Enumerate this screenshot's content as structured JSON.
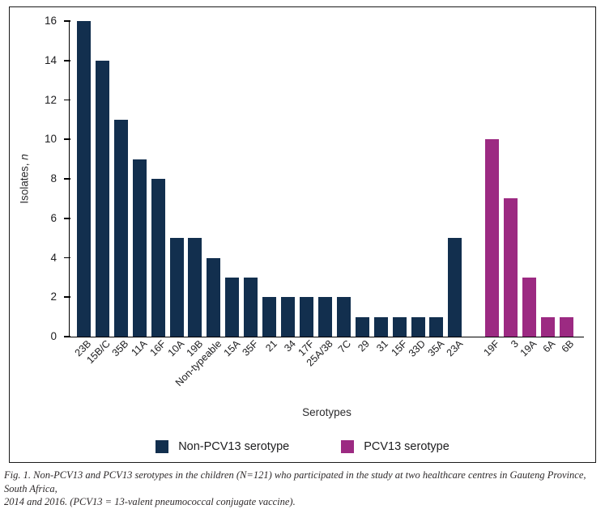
{
  "figure": {
    "caption": {
      "line1": "Fig. 1. Non-PCV13 and PCV13 serotypes in the children (N=121) who participated in the study at two healthcare centres in Gauteng Province, South Africa,",
      "line2": "2014 and 2016. (PCV13 = 13-valent pneumococcal conjugate vaccine)."
    }
  },
  "colors": {
    "non_pcv13": "#122F4E",
    "pcv13": "#9C2A82",
    "axis": "#000000",
    "border": "#1a1a1a"
  },
  "legend": [
    {
      "label": "Non-PCV13 serotype",
      "color_key": "non_pcv13"
    },
    {
      "label": "PCV13 serotype",
      "color_key": "pcv13"
    }
  ],
  "chart_data": {
    "type": "bar",
    "title": "",
    "xlabel": "Serotypes",
    "ylabel": "Isolates, n",
    "ylabel_plain": "Isolates, ",
    "ylabel_italic": "n",
    "ylim": [
      0,
      16
    ],
    "ytick_step": 2,
    "grid": false,
    "legend_position": "bottom",
    "categories": [
      "23B",
      "15B/C",
      "35B",
      "11A",
      "16F",
      "10A",
      "19B",
      "Non-typeable",
      "15A",
      "35F",
      "21",
      "34",
      "17F",
      "25A/38",
      "7C",
      "29",
      "31",
      "15F",
      "33D",
      "35A",
      "23A",
      "19F",
      "3",
      "19A",
      "6A",
      "6B"
    ],
    "values": [
      16,
      14,
      11,
      9,
      8,
      5,
      5,
      4,
      3,
      3,
      2,
      2,
      2,
      2,
      2,
      1,
      1,
      1,
      1,
      1,
      5,
      10,
      7,
      3,
      1,
      1
    ],
    "bar_color_keys": [
      "non_pcv13",
      "non_pcv13",
      "non_pcv13",
      "non_pcv13",
      "non_pcv13",
      "non_pcv13",
      "non_pcv13",
      "non_pcv13",
      "non_pcv13",
      "non_pcv13",
      "non_pcv13",
      "non_pcv13",
      "non_pcv13",
      "non_pcv13",
      "non_pcv13",
      "non_pcv13",
      "non_pcv13",
      "non_pcv13",
      "non_pcv13",
      "non_pcv13",
      "non_pcv13",
      "pcv13",
      "pcv13",
      "pcv13",
      "pcv13",
      "pcv13"
    ],
    "gap_after_category": "23A"
  }
}
